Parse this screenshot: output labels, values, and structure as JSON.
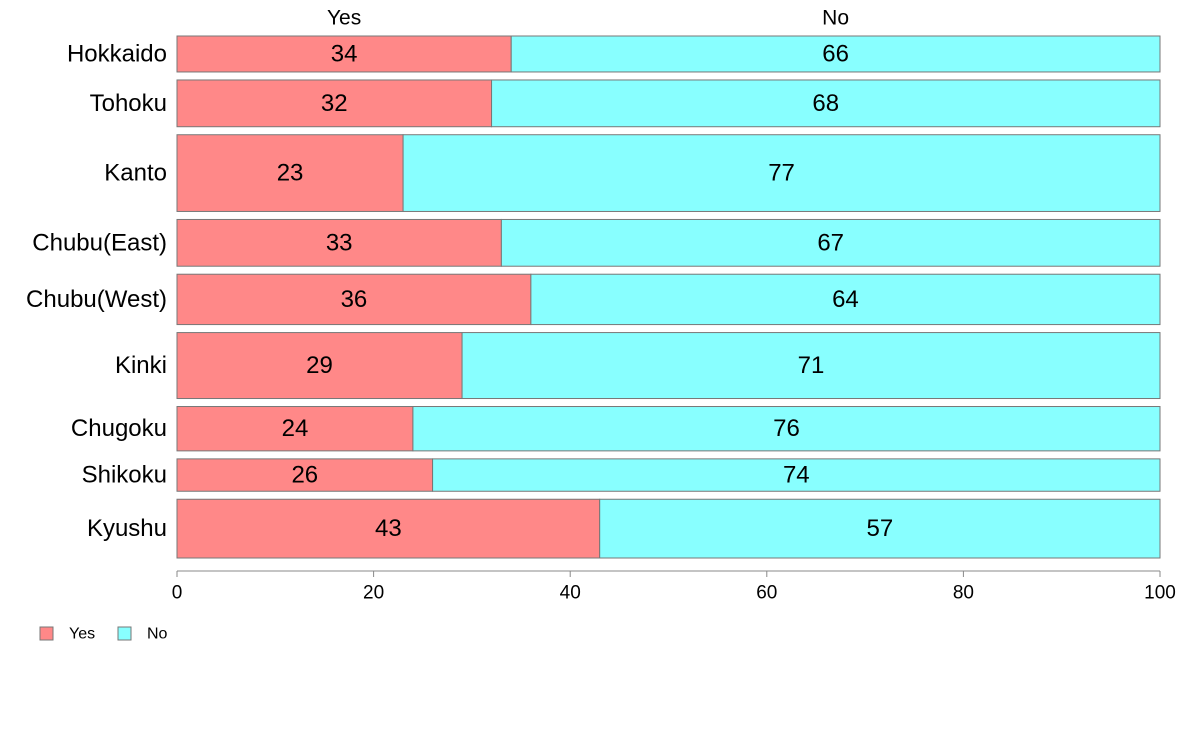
{
  "chart_data": {
    "type": "bar",
    "orientation": "horizontal",
    "stacked": true,
    "categories": [
      "Hokkaido",
      "Tohoku",
      "Kanto",
      "Chubu(East)",
      "Chubu(West)",
      "Kinki",
      "Chugoku",
      "Shikoku",
      "Kyushu"
    ],
    "series": [
      {
        "name": "Yes",
        "values": [
          34,
          32,
          23,
          33,
          36,
          29,
          24,
          26,
          43
        ],
        "color": "#ff8888"
      },
      {
        "name": "No",
        "values": [
          66,
          68,
          77,
          67,
          64,
          71,
          76,
          74,
          57
        ],
        "color": "#88ffff"
      }
    ],
    "xlim": [
      0,
      100
    ],
    "xticks": [
      0,
      20,
      40,
      60,
      80,
      100
    ],
    "column_headers": [
      "Yes",
      "No"
    ],
    "legend": {
      "position": "bottom-left",
      "entries": [
        "Yes",
        "No"
      ]
    },
    "grid": false,
    "relative_bar_widths": [
      3,
      3.9,
      6.4,
      3.9,
      4.2,
      5.5,
      3.7,
      2.7,
      4.9
    ]
  }
}
